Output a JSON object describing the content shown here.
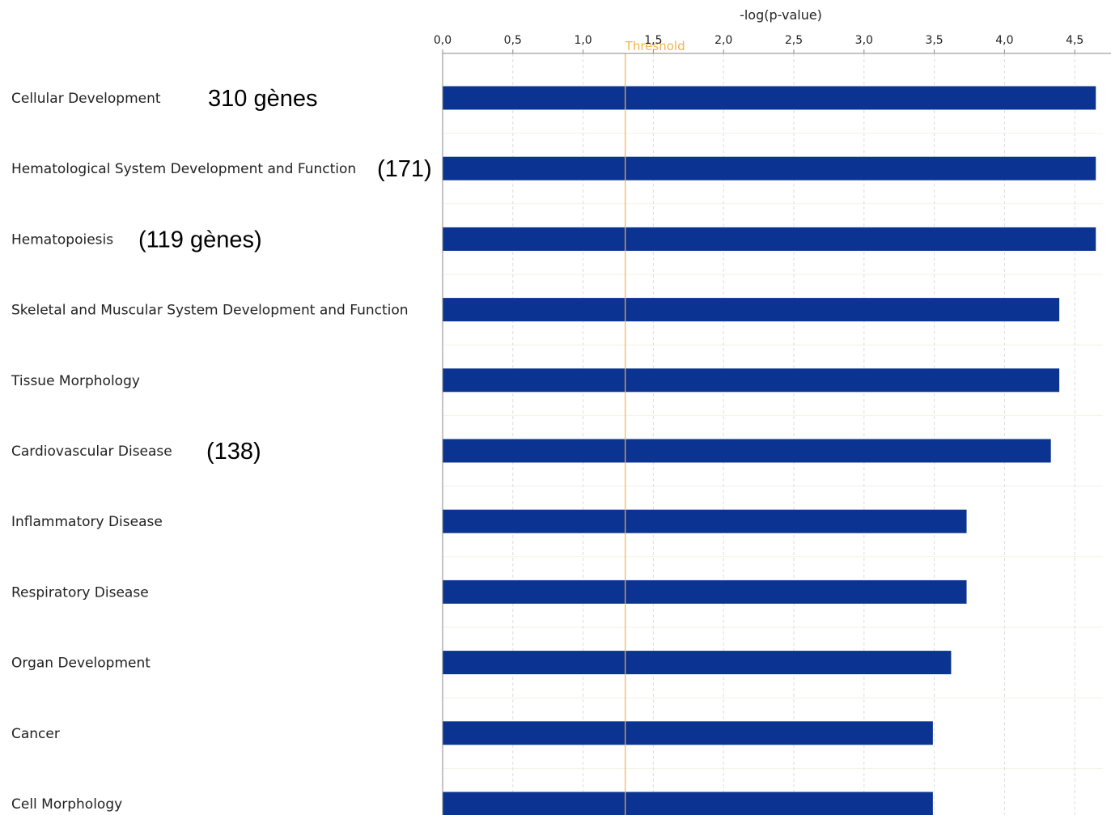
{
  "chart_data": {
    "type": "bar",
    "orientation": "horizontal",
    "xlabel": "-log(p-value)",
    "xlim": [
      0,
      4.7
    ],
    "tick_values": [
      0,
      0.5,
      1.0,
      1.5,
      2.0,
      2.5,
      3.0,
      3.5,
      4.0,
      4.5
    ],
    "tick_labels": [
      "0,0",
      "0,5",
      "1,0",
      "1,5",
      "2,0",
      "2,5",
      "3,0",
      "3,5",
      "4,0",
      "4,5"
    ],
    "axis_position": "top",
    "grid": true,
    "threshold": {
      "value": 1.3,
      "label": "Threshold",
      "color": "#f0b450"
    },
    "bar_color": "#0b3391",
    "categories": [
      "Cellular Development",
      "Hematological System Development and Function",
      "Hematopoiesis",
      "Skeletal and Muscular System Development and Function",
      "Tissue Morphology",
      "Cardiovascular Disease",
      "Inflammatory Disease",
      "Respiratory Disease",
      "Organ Development",
      "Cancer",
      "Cell Morphology"
    ],
    "values": [
      4.65,
      4.65,
      4.65,
      4.39,
      4.39,
      4.33,
      3.73,
      3.73,
      3.62,
      3.49,
      3.49
    ],
    "annotations": [
      {
        "category_index": 0,
        "text": "310 gènes"
      },
      {
        "category_index": 1,
        "text": "(171)"
      },
      {
        "category_index": 2,
        "text": "(119 gènes)"
      },
      {
        "category_index": 5,
        "text": "(138)"
      }
    ]
  }
}
